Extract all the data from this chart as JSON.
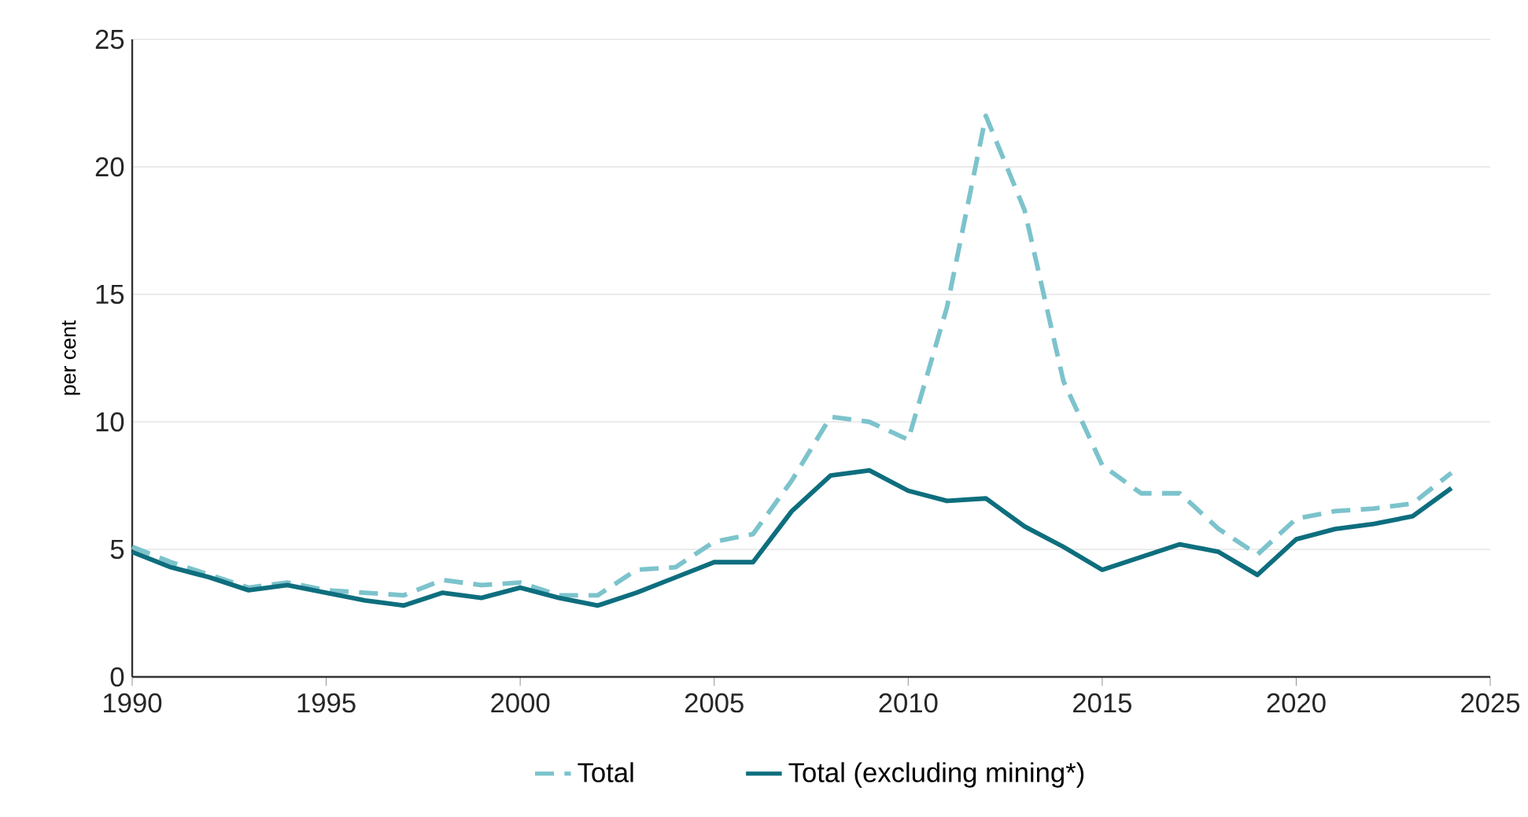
{
  "chart_data": {
    "type": "line",
    "ylabel": "per cent",
    "x": [
      1990,
      1991,
      1992,
      1993,
      1994,
      1995,
      1996,
      1997,
      1998,
      1999,
      2000,
      2001,
      2002,
      2003,
      2004,
      2005,
      2006,
      2007,
      2008,
      2009,
      2010,
      2011,
      2012,
      2013,
      2014,
      2015,
      2016,
      2017,
      2018,
      2019,
      2020,
      2021,
      2022,
      2023,
      2024
    ],
    "series": [
      {
        "name": "Total",
        "color": "#7cc3cc",
        "line_style": "dashed",
        "values": [
          5.1,
          4.5,
          4.0,
          3.5,
          3.7,
          3.4,
          3.3,
          3.2,
          3.8,
          3.6,
          3.7,
          3.2,
          3.2,
          4.2,
          4.3,
          5.3,
          5.6,
          7.7,
          10.2,
          10.0,
          9.3,
          14.5,
          22.0,
          18.3,
          11.6,
          8.3,
          7.2,
          7.2,
          5.8,
          4.8,
          6.2,
          6.5,
          6.6,
          6.8,
          8.0
        ]
      },
      {
        "name": "Total (excluding mining*)",
        "color": "#0e6e7e",
        "line_style": "solid",
        "values": [
          4.9,
          4.3,
          3.9,
          3.4,
          3.6,
          3.3,
          3.0,
          2.8,
          3.3,
          3.1,
          3.5,
          3.1,
          2.8,
          3.3,
          3.9,
          4.5,
          4.5,
          6.5,
          7.9,
          8.1,
          7.3,
          6.9,
          7.0,
          5.9,
          5.1,
          4.2,
          4.7,
          5.2,
          4.9,
          4.0,
          5.4,
          5.8,
          6.0,
          6.3,
          7.4
        ]
      }
    ],
    "xlim": [
      1990,
      2025
    ],
    "xticks": [
      1990,
      1995,
      2000,
      2005,
      2010,
      2015,
      2020,
      2025
    ],
    "ylim": [
      0,
      25
    ],
    "yticks": [
      0,
      5,
      10,
      15,
      20,
      25
    ],
    "grid": "y",
    "legend": "bottom",
    "marker": "none"
  }
}
